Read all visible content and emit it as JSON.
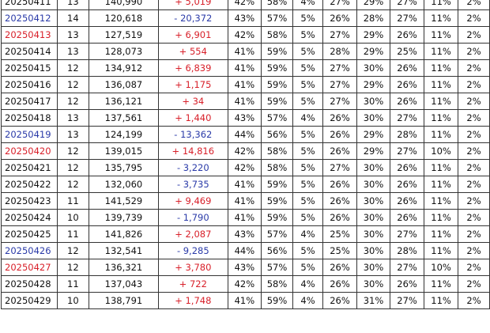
{
  "rows": [
    {
      "date": "20250411",
      "n": "13",
      "total": "140,990",
      "change": "+ 5,019",
      "a": "42%",
      "b": "58%",
      "c": "4%",
      "d": "27%",
      "e": "29%",
      "f": "27%",
      "g": "11%",
      "h": "2%",
      "color": "black",
      "sign": "up"
    },
    {
      "date": "20250412",
      "n": "14",
      "total": "120,618",
      "change": "- 20,372",
      "a": "43%",
      "b": "57%",
      "c": "5%",
      "d": "26%",
      "e": "28%",
      "f": "27%",
      "g": "11%",
      "h": "2%",
      "color": "blue",
      "sign": "down"
    },
    {
      "date": "20250413",
      "n": "13",
      "total": "127,519",
      "change": "+ 6,901",
      "a": "42%",
      "b": "58%",
      "c": "5%",
      "d": "27%",
      "e": "29%",
      "f": "26%",
      "g": "11%",
      "h": "2%",
      "color": "red",
      "sign": "up"
    },
    {
      "date": "20250414",
      "n": "13",
      "total": "128,073",
      "change": "+ 554",
      "a": "41%",
      "b": "59%",
      "c": "5%",
      "d": "28%",
      "e": "29%",
      "f": "25%",
      "g": "11%",
      "h": "2%",
      "color": "black",
      "sign": "up"
    },
    {
      "date": "20250415",
      "n": "12",
      "total": "134,912",
      "change": "+ 6,839",
      "a": "41%",
      "b": "59%",
      "c": "5%",
      "d": "27%",
      "e": "30%",
      "f": "26%",
      "g": "11%",
      "h": "2%",
      "color": "black",
      "sign": "up"
    },
    {
      "date": "20250416",
      "n": "12",
      "total": "136,087",
      "change": "+ 1,175",
      "a": "41%",
      "b": "59%",
      "c": "5%",
      "d": "27%",
      "e": "29%",
      "f": "26%",
      "g": "11%",
      "h": "2%",
      "color": "black",
      "sign": "up"
    },
    {
      "date": "20250417",
      "n": "12",
      "total": "136,121",
      "change": "+ 34",
      "a": "41%",
      "b": "59%",
      "c": "5%",
      "d": "27%",
      "e": "30%",
      "f": "26%",
      "g": "11%",
      "h": "2%",
      "color": "black",
      "sign": "up"
    },
    {
      "date": "20250418",
      "n": "13",
      "total": "137,561",
      "change": "+ 1,440",
      "a": "43%",
      "b": "57%",
      "c": "4%",
      "d": "26%",
      "e": "30%",
      "f": "27%",
      "g": "11%",
      "h": "2%",
      "color": "black",
      "sign": "up"
    },
    {
      "date": "20250419",
      "n": "13",
      "total": "124,199",
      "change": "- 13,362",
      "a": "44%",
      "b": "56%",
      "c": "5%",
      "d": "26%",
      "e": "29%",
      "f": "28%",
      "g": "11%",
      "h": "2%",
      "color": "blue",
      "sign": "down"
    },
    {
      "date": "20250420",
      "n": "12",
      "total": "139,015",
      "change": "+ 14,816",
      "a": "42%",
      "b": "58%",
      "c": "5%",
      "d": "26%",
      "e": "29%",
      "f": "27%",
      "g": "10%",
      "h": "2%",
      "color": "red",
      "sign": "up"
    },
    {
      "date": "20250421",
      "n": "12",
      "total": "135,795",
      "change": "- 3,220",
      "a": "42%",
      "b": "58%",
      "c": "5%",
      "d": "27%",
      "e": "30%",
      "f": "26%",
      "g": "11%",
      "h": "2%",
      "color": "black",
      "sign": "down"
    },
    {
      "date": "20250422",
      "n": "12",
      "total": "132,060",
      "change": "- 3,735",
      "a": "41%",
      "b": "59%",
      "c": "5%",
      "d": "26%",
      "e": "30%",
      "f": "26%",
      "g": "11%",
      "h": "2%",
      "color": "black",
      "sign": "down"
    },
    {
      "date": "20250423",
      "n": "11",
      "total": "141,529",
      "change": "+ 9,469",
      "a": "41%",
      "b": "59%",
      "c": "5%",
      "d": "26%",
      "e": "30%",
      "f": "26%",
      "g": "11%",
      "h": "2%",
      "color": "black",
      "sign": "up"
    },
    {
      "date": "20250424",
      "n": "10",
      "total": "139,739",
      "change": "- 1,790",
      "a": "41%",
      "b": "59%",
      "c": "5%",
      "d": "26%",
      "e": "30%",
      "f": "26%",
      "g": "11%",
      "h": "2%",
      "color": "black",
      "sign": "down"
    },
    {
      "date": "20250425",
      "n": "11",
      "total": "141,826",
      "change": "+ 2,087",
      "a": "43%",
      "b": "57%",
      "c": "4%",
      "d": "25%",
      "e": "30%",
      "f": "27%",
      "g": "11%",
      "h": "2%",
      "color": "black",
      "sign": "up"
    },
    {
      "date": "20250426",
      "n": "12",
      "total": "132,541",
      "change": "- 9,285",
      "a": "44%",
      "b": "56%",
      "c": "5%",
      "d": "25%",
      "e": "30%",
      "f": "28%",
      "g": "11%",
      "h": "2%",
      "color": "blue",
      "sign": "down"
    },
    {
      "date": "20250427",
      "n": "12",
      "total": "136,321",
      "change": "+ 3,780",
      "a": "43%",
      "b": "57%",
      "c": "5%",
      "d": "26%",
      "e": "30%",
      "f": "27%",
      "g": "10%",
      "h": "2%",
      "color": "red",
      "sign": "up"
    },
    {
      "date": "20250428",
      "n": "11",
      "total": "137,043",
      "change": "+ 722",
      "a": "42%",
      "b": "58%",
      "c": "4%",
      "d": "26%",
      "e": "30%",
      "f": "26%",
      "g": "11%",
      "h": "2%",
      "color": "black",
      "sign": "up"
    },
    {
      "date": "20250429",
      "n": "10",
      "total": "138,791",
      "change": "+ 1,748",
      "a": "41%",
      "b": "59%",
      "c": "4%",
      "d": "26%",
      "e": "31%",
      "f": "27%",
      "g": "11%",
      "h": "2%",
      "color": "black",
      "sign": "up"
    }
  ]
}
